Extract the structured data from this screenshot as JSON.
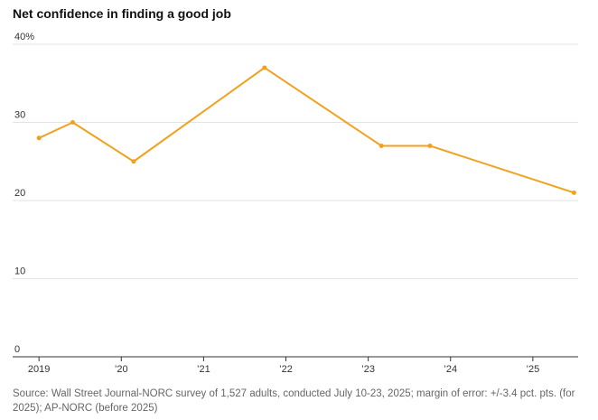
{
  "chart_data": {
    "type": "line",
    "title": "Net confidence in finding a good job",
    "source": "Source: Wall Street Journal-NORC survey of 1,527 adults, conducted July 10-23, 2025; margin of error: +/-3.4 pct. pts. (for 2025); AP-NORC (before 2025)",
    "x": [
      2019,
      2019.41,
      2020.15,
      2021.74,
      2023.16,
      2023.75,
      2025.5
    ],
    "series": [
      {
        "name": "Net confidence",
        "color": "#f2a11f",
        "values": [
          28,
          30,
          25,
          37,
          27,
          27,
          21
        ]
      }
    ],
    "xlim": [
      2018.68,
      2025.55
    ],
    "xticks": [
      2019,
      {
        "value": 2020,
        "label": "’20"
      },
      {
        "value": 2021,
        "label": "’21"
      },
      {
        "value": 2022,
        "label": "’22"
      },
      {
        "value": 2023,
        "label": "’23"
      },
      {
        "value": 2024,
        "label": "’24"
      },
      {
        "value": 2025,
        "label": "’25"
      }
    ],
    "ylim": [
      0,
      40
    ],
    "yticks": [
      0,
      10,
      20,
      30,
      {
        "value": 40,
        "label": "40%"
      }
    ],
    "grid": true
  }
}
